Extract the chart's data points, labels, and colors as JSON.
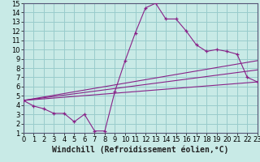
{
  "xlabel": "Windchill (Refroidissement éolien,°C)",
  "xlim": [
    0,
    23
  ],
  "ylim": [
    1,
    15
  ],
  "xticks": [
    0,
    1,
    2,
    3,
    4,
    5,
    6,
    7,
    8,
    9,
    10,
    11,
    12,
    13,
    14,
    15,
    16,
    17,
    18,
    19,
    20,
    21,
    22,
    23
  ],
  "yticks": [
    1,
    2,
    3,
    4,
    5,
    6,
    7,
    8,
    9,
    10,
    11,
    12,
    13,
    14,
    15
  ],
  "background_color": "#c8eae6",
  "grid_color": "#99cccc",
  "line_color": "#882288",
  "zigzag_x": [
    0,
    1,
    2,
    3,
    4,
    5,
    6,
    7,
    8,
    9,
    10,
    11,
    12,
    13,
    14,
    15,
    16,
    17,
    18,
    19,
    20,
    21,
    22,
    23
  ],
  "zigzag_y": [
    4.5,
    3.9,
    3.6,
    3.1,
    3.1,
    2.2,
    3.0,
    1.2,
    1.2,
    5.5,
    8.8,
    11.8,
    14.5,
    15.0,
    13.3,
    13.3,
    12.0,
    10.5,
    9.8,
    10.0,
    9.8,
    9.5,
    7.0,
    6.5
  ],
  "line2_x": [
    0,
    23
  ],
  "line2_y": [
    4.5,
    6.5
  ],
  "line3_x": [
    0,
    23
  ],
  "line3_y": [
    4.5,
    7.8
  ],
  "line4_x": [
    0,
    23
  ],
  "line4_y": [
    4.5,
    8.8
  ],
  "tick_fontsize": 6,
  "label_fontsize": 7
}
